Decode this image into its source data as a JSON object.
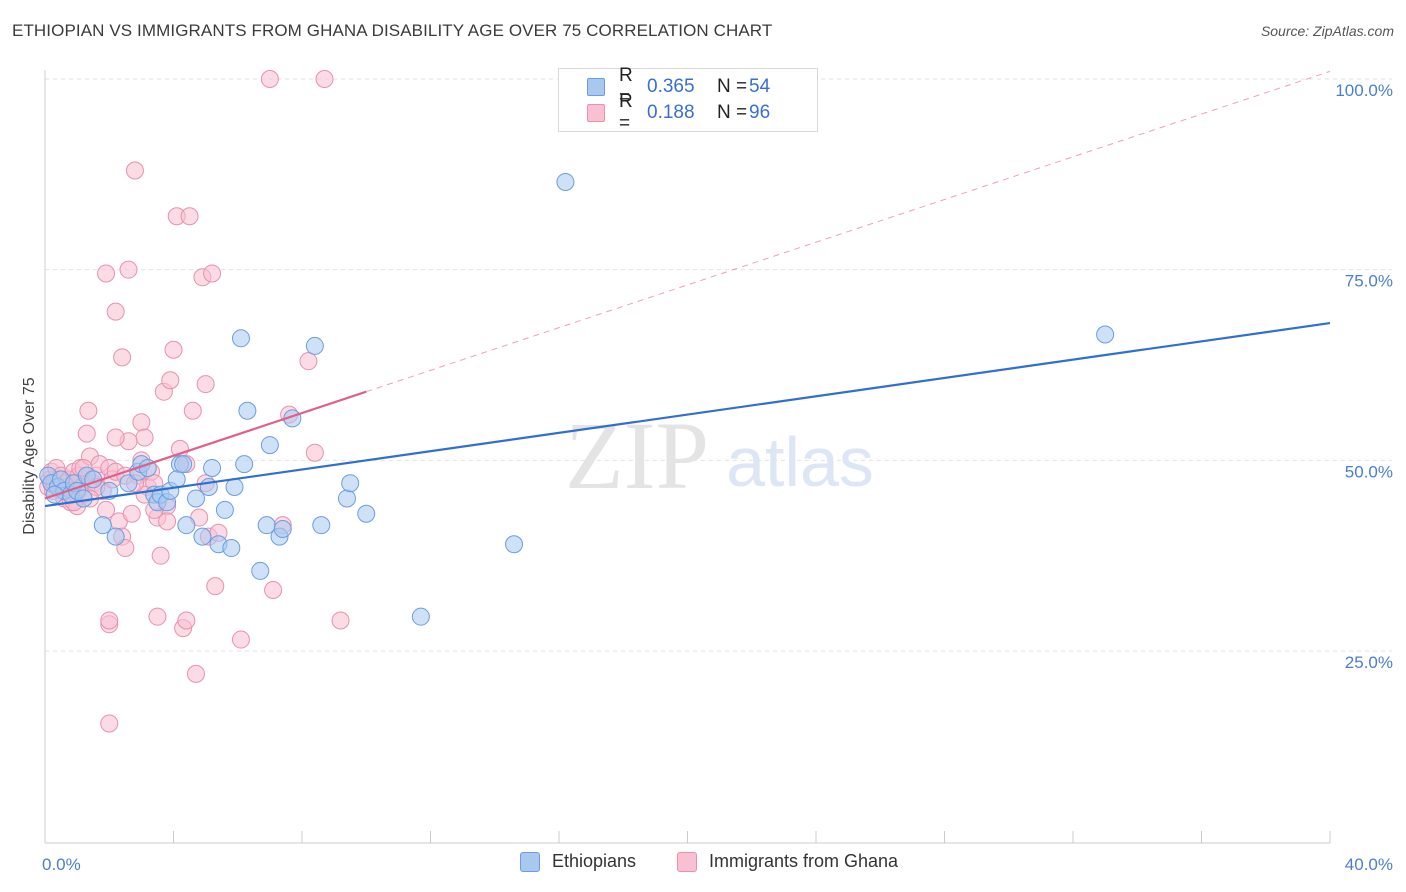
{
  "header": {
    "title": "ETHIOPIAN VS IMMIGRANTS FROM GHANA DISABILITY AGE OVER 75 CORRELATION CHART",
    "source": "Source: ZipAtlas.com"
  },
  "watermark": {
    "zip": "ZIP",
    "atlas": "atlas"
  },
  "legend": {
    "rows": [
      {
        "r_label": "R =",
        "r_value": "0.365",
        "n_label": "N =",
        "n_value": "54",
        "color": "#a8c8f0",
        "border": "#6a9ee0"
      },
      {
        "r_label": "R =",
        "r_value": "0.188",
        "n_label": "N =",
        "n_value": "96",
        "color": "#f8c0d0",
        "border": "#e890b0"
      }
    ]
  },
  "colors": {
    "blue_fill": "#a8c8f0",
    "blue_stroke": "#6a9ee0",
    "blue_line": "#2f6fd0",
    "pink_fill": "#f8c0d0",
    "pink_stroke": "#e890b0",
    "pink_line": "#e0608c",
    "grid": "#e2e2e2",
    "axis_text": "#4a7fd0"
  },
  "chart_data": {
    "type": "scatter",
    "title": "ETHIOPIAN VS IMMIGRANTS FROM GHANA DISABILITY AGE OVER 75 CORRELATION CHART",
    "xlabel": "",
    "ylabel": "Disability Age Over 75",
    "xlim": [
      0,
      40
    ],
    "ylim": [
      0,
      105
    ],
    "x_ticks": [
      0,
      40
    ],
    "x_tick_labels": [
      "0.0%",
      "40.0%"
    ],
    "y_ticks": [
      25,
      50,
      75,
      100
    ],
    "y_tick_labels": [
      "25.0%",
      "50.0%",
      "75.0%",
      "100.0%"
    ],
    "grid": true,
    "legend_position": "top-center",
    "series": [
      {
        "name": "Ethiopians",
        "color": "#a8c8f0",
        "trend": {
          "x": [
            0,
            40
          ],
          "y": [
            44.0,
            68.0
          ],
          "style": "solid",
          "color": "#2f6fd0"
        },
        "points": [
          [
            0.1,
            48.0
          ],
          [
            0.2,
            47.0
          ],
          [
            0.4,
            46.5
          ],
          [
            0.5,
            47.5
          ],
          [
            0.6,
            46.0
          ],
          [
            0.8,
            45.5
          ],
          [
            0.9,
            47.0
          ],
          [
            1.0,
            46.0
          ],
          [
            1.2,
            45.0
          ],
          [
            1.3,
            48.0
          ],
          [
            1.5,
            47.5
          ],
          [
            1.8,
            41.5
          ],
          [
            2.0,
            46.0
          ],
          [
            2.2,
            40.0
          ],
          [
            2.6,
            47.0
          ],
          [
            2.9,
            48.5
          ],
          [
            3.0,
            49.5
          ],
          [
            3.2,
            49.0
          ],
          [
            3.4,
            45.5
          ],
          [
            3.5,
            44.5
          ],
          [
            3.6,
            45.5
          ],
          [
            3.8,
            44.5
          ],
          [
            3.9,
            46.0
          ],
          [
            4.2,
            49.5
          ],
          [
            4.1,
            47.5
          ],
          [
            4.3,
            49.5
          ],
          [
            4.4,
            41.5
          ],
          [
            4.7,
            45.0
          ],
          [
            4.9,
            40.0
          ],
          [
            5.1,
            46.5
          ],
          [
            5.2,
            49.0
          ],
          [
            5.4,
            39.0
          ],
          [
            5.6,
            43.5
          ],
          [
            5.8,
            38.5
          ],
          [
            5.9,
            46.5
          ],
          [
            6.1,
            66.0
          ],
          [
            6.2,
            49.5
          ],
          [
            6.3,
            56.5
          ],
          [
            6.7,
            35.5
          ],
          [
            6.9,
            41.5
          ],
          [
            7.0,
            52.0
          ],
          [
            7.3,
            40.0
          ],
          [
            7.4,
            41.0
          ],
          [
            7.7,
            55.5
          ],
          [
            8.4,
            65.0
          ],
          [
            8.6,
            41.5
          ],
          [
            9.4,
            45.0
          ],
          [
            9.5,
            47.0
          ],
          [
            10.0,
            43.0
          ],
          [
            11.7,
            29.5
          ],
          [
            14.6,
            39.0
          ],
          [
            16.2,
            86.5
          ],
          [
            33.0,
            66.5
          ],
          [
            0.3,
            45.5
          ]
        ]
      },
      {
        "name": "Immigrants from Ghana",
        "color": "#f8c0d0",
        "trend": {
          "x": [
            0,
            10
          ],
          "y": [
            45.0,
            59.0
          ],
          "style": "solid",
          "dashed_extension_to": [
            40,
            101
          ],
          "color": "#e0608c"
        },
        "points": [
          [
            0.1,
            46.5
          ],
          [
            0.15,
            47.5
          ],
          [
            0.2,
            48.5
          ],
          [
            0.25,
            46.0
          ],
          [
            0.3,
            47.0
          ],
          [
            0.35,
            49.0
          ],
          [
            0.4,
            46.5
          ],
          [
            0.45,
            47.5
          ],
          [
            0.5,
            48.0
          ],
          [
            0.55,
            46.0
          ],
          [
            0.6,
            45.0
          ],
          [
            0.65,
            47.0
          ],
          [
            0.7,
            46.5
          ],
          [
            0.75,
            47.5
          ],
          [
            0.8,
            44.5
          ],
          [
            0.85,
            46.0
          ],
          [
            0.9,
            48.5
          ],
          [
            0.95,
            47.0
          ],
          [
            1.0,
            44.0
          ],
          [
            1.05,
            48.0
          ],
          [
            1.1,
            49.0
          ],
          [
            1.15,
            46.5
          ],
          [
            1.2,
            45.5
          ],
          [
            1.3,
            53.5
          ],
          [
            1.35,
            56.5
          ],
          [
            1.4,
            50.5
          ],
          [
            1.5,
            47.0
          ],
          [
            1.6,
            48.0
          ],
          [
            1.7,
            49.5
          ],
          [
            1.8,
            46.0
          ],
          [
            1.9,
            43.5
          ],
          [
            2.0,
            49.0
          ],
          [
            2.1,
            47.5
          ],
          [
            2.2,
            48.5
          ],
          [
            2.3,
            42.0
          ],
          [
            2.4,
            40.0
          ],
          [
            2.5,
            48.0
          ],
          [
            1.9,
            74.5
          ],
          [
            2.2,
            69.5
          ],
          [
            2.4,
            63.5
          ],
          [
            2.5,
            38.5
          ],
          [
            2.6,
            75.0
          ],
          [
            2.7,
            43.0
          ],
          [
            2.8,
            88.0
          ],
          [
            2.9,
            48.0
          ],
          [
            3.0,
            55.0
          ],
          [
            3.1,
            53.0
          ],
          [
            3.2,
            46.5
          ],
          [
            3.3,
            48.5
          ],
          [
            3.4,
            47.0
          ],
          [
            3.5,
            42.5
          ],
          [
            3.6,
            37.5
          ],
          [
            3.7,
            59.0
          ],
          [
            3.8,
            44.0
          ],
          [
            3.9,
            60.5
          ],
          [
            4.0,
            64.5
          ],
          [
            4.1,
            82.0
          ],
          [
            4.2,
            51.5
          ],
          [
            4.3,
            28.0
          ],
          [
            4.4,
            29.0
          ],
          [
            4.5,
            82.0
          ],
          [
            4.6,
            56.5
          ],
          [
            4.7,
            22.0
          ],
          [
            4.8,
            42.5
          ],
          [
            4.9,
            74.0
          ],
          [
            5.0,
            60.0
          ],
          [
            5.1,
            40.0
          ],
          [
            5.2,
            74.5
          ],
          [
            5.3,
            33.5
          ],
          [
            5.4,
            40.5
          ],
          [
            6.1,
            26.5
          ],
          [
            7.1,
            33.0
          ],
          [
            7.4,
            41.5
          ],
          [
            7.6,
            56.0
          ],
          [
            8.2,
            63.0
          ],
          [
            8.4,
            51.0
          ],
          [
            9.2,
            29.0
          ],
          [
            7.0,
            100.0
          ],
          [
            8.7,
            100.0
          ],
          [
            2.0,
            15.5
          ],
          [
            2.0,
            28.5
          ],
          [
            2.0,
            29.0
          ],
          [
            3.5,
            29.5
          ],
          [
            3.1,
            45.5
          ],
          [
            2.8,
            47.0
          ],
          [
            2.6,
            52.5
          ],
          [
            1.6,
            46.5
          ],
          [
            1.4,
            45.0
          ],
          [
            0.9,
            44.5
          ],
          [
            3.4,
            43.5
          ],
          [
            3.8,
            42.0
          ],
          [
            4.4,
            49.5
          ],
          [
            5.0,
            47.0
          ],
          [
            3.0,
            50.0
          ],
          [
            2.2,
            53.0
          ],
          [
            1.2,
            49.0
          ]
        ]
      }
    ]
  },
  "bottom_legend": {
    "items": [
      {
        "label": "Ethiopians",
        "color": "#a8c8f0",
        "border": "#6a9ee0"
      },
      {
        "label": "Immigrants from Ghana",
        "color": "#f8c0d0",
        "border": "#e890b0"
      }
    ]
  }
}
